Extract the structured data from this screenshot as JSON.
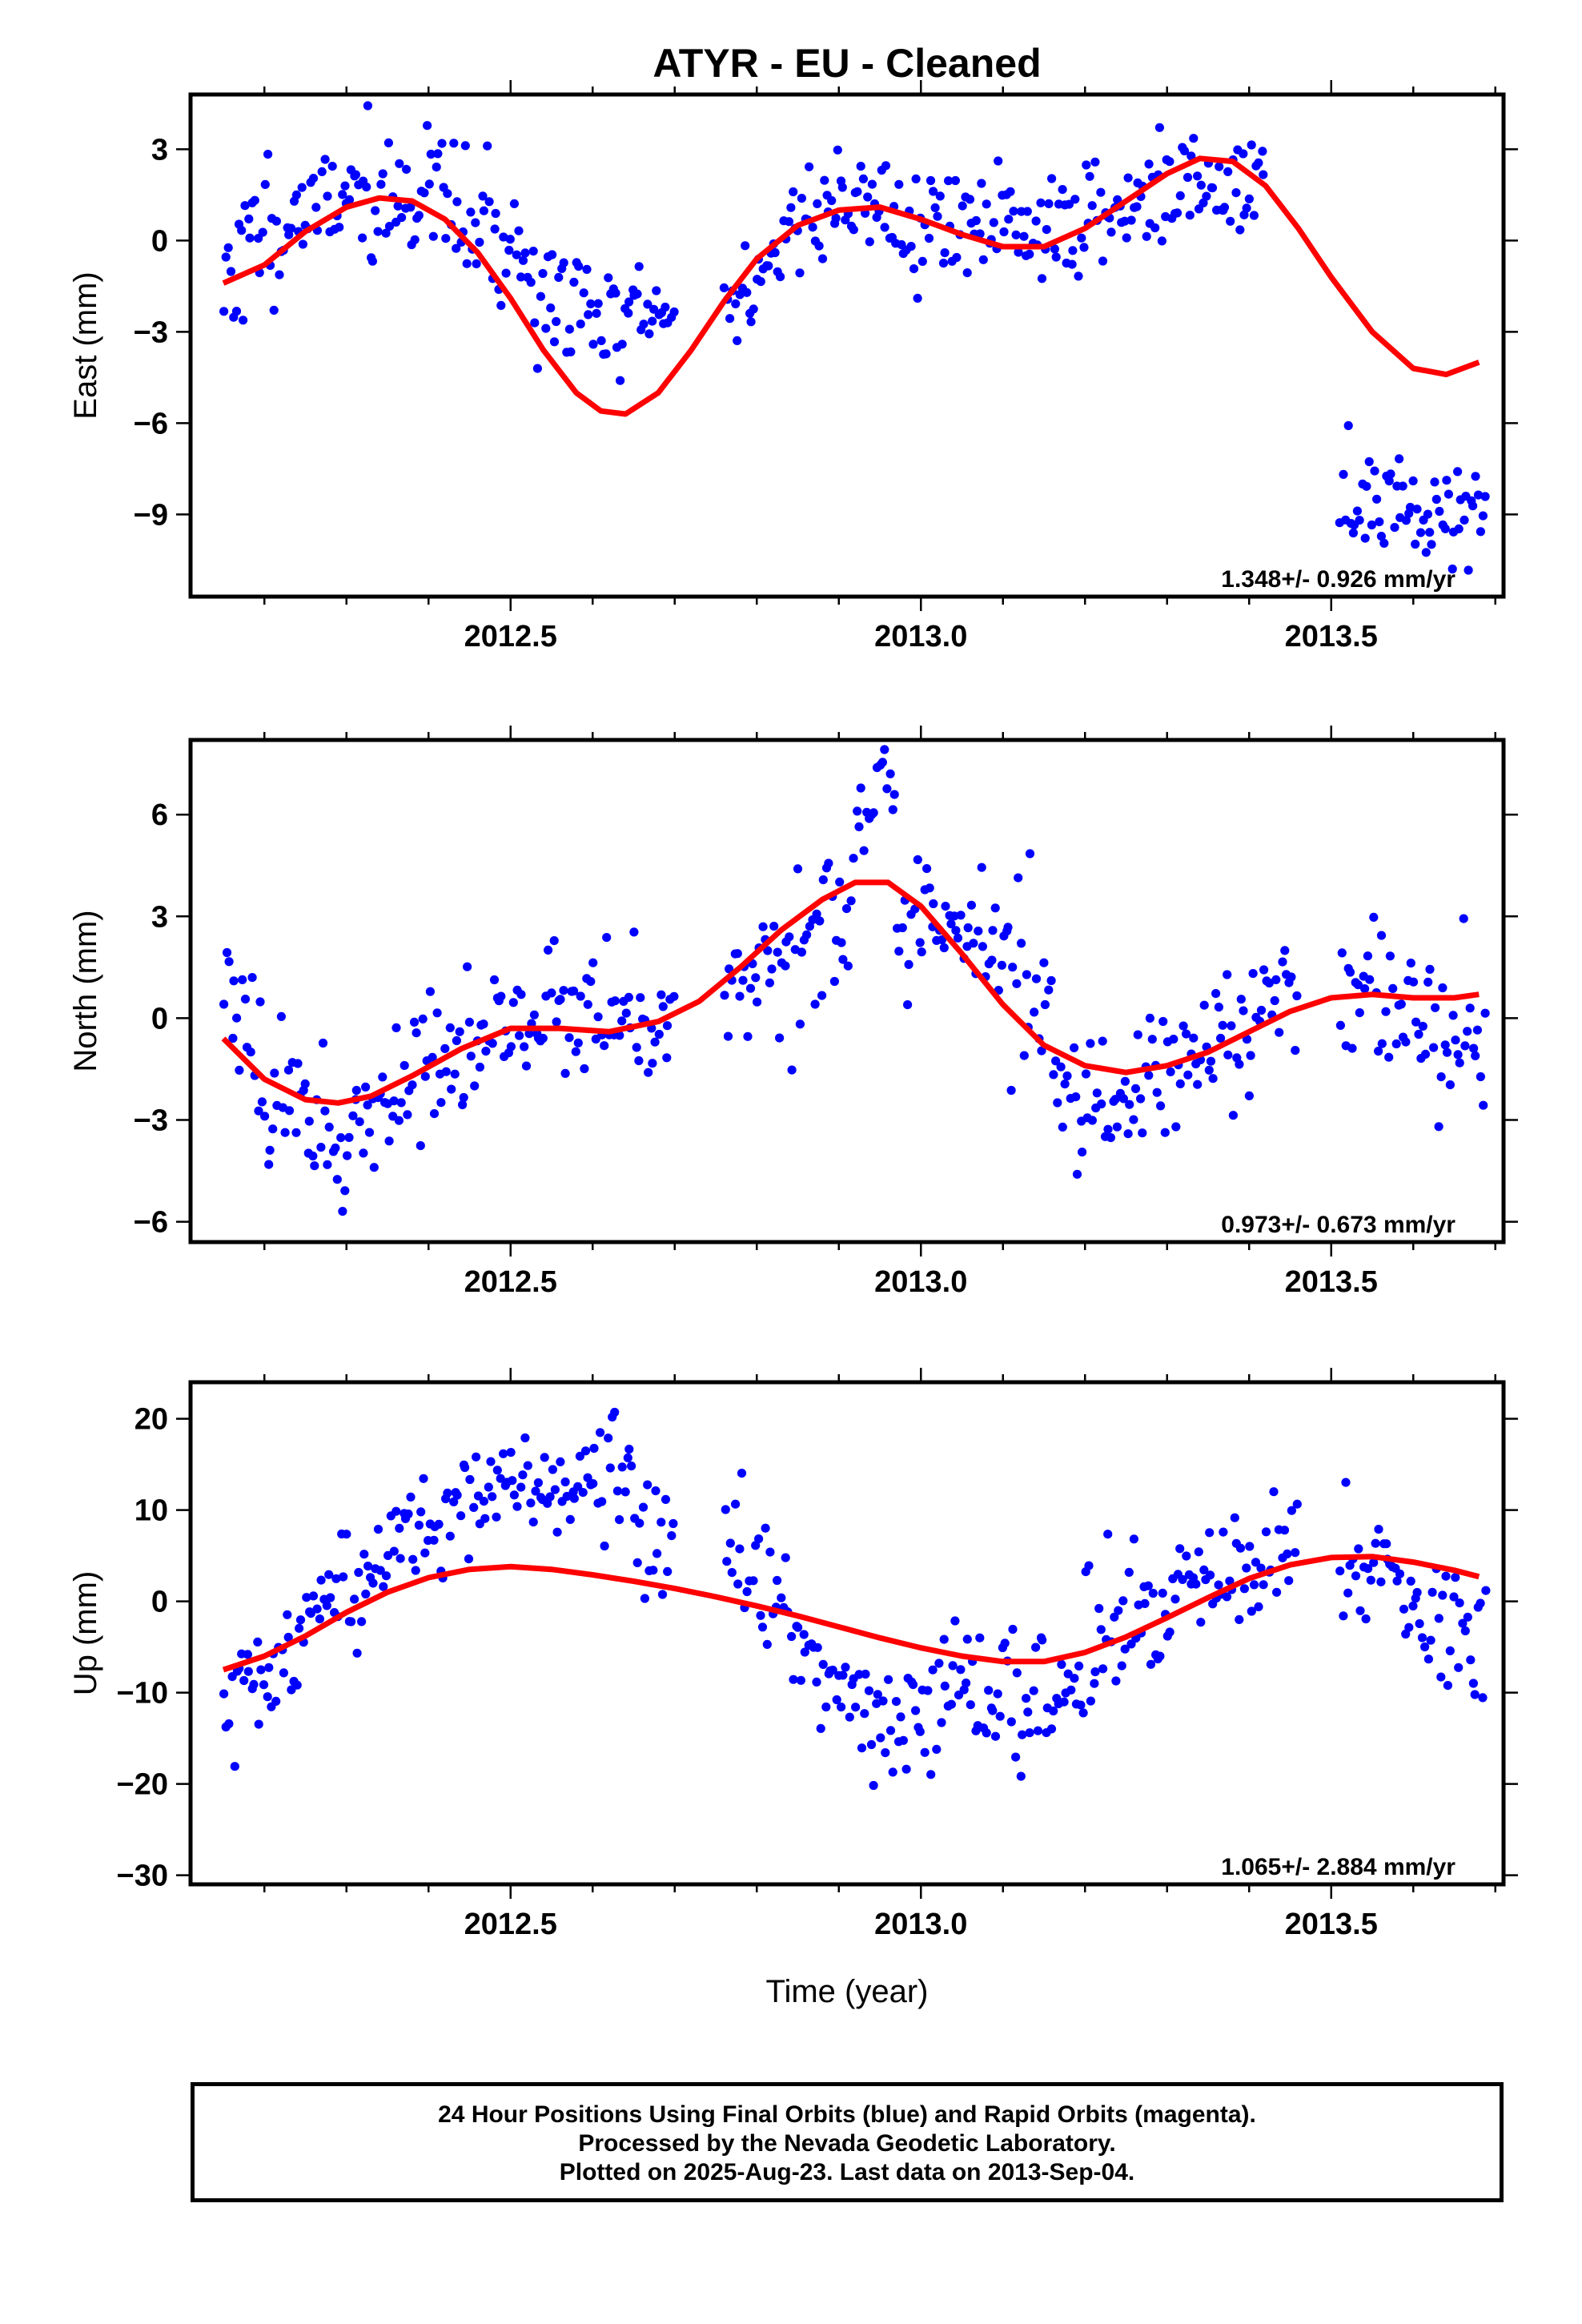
{
  "chart_data": [
    {
      "type": "scatter",
      "title": "ATYR  - EU - Cleaned",
      "ylabel": "East (mm)",
      "xlabel": "",
      "xlim": [
        2012.11,
        2013.71
      ],
      "ylim": [
        -11.7,
        4.8
      ],
      "xticks": [
        2012.5,
        2013.0,
        2013.5
      ],
      "xtick_labels": [
        "2012.5",
        "2013.0",
        "2013.5"
      ],
      "yticks": [
        3,
        0,
        -3,
        -6,
        -9
      ],
      "ytick_labels": [
        "3",
        "0",
        "−3",
        "−6",
        "−9"
      ],
      "rate_text": "1.348+/- 0.926 mm/yr",
      "series": [
        {
          "color": "#0000ff",
          "style": "points",
          "segments": [
            [
              2012.15,
              2012.22,
              -1.2,
              1.0,
              1.6
            ],
            [
              2012.22,
              2012.32,
              0.4,
              2.2,
              1.4
            ],
            [
              2012.32,
              2012.42,
              1.2,
              1.6,
              1.4
            ],
            [
              2012.42,
              2012.52,
              0.8,
              -0.4,
              1.8
            ],
            [
              2012.52,
              2012.6,
              -1.6,
              -2.4,
              1.3
            ],
            [
              2012.6,
              2012.7,
              -2.6,
              -2.4,
              1.2
            ],
            [
              2012.76,
              2012.84,
              -2.4,
              0.0,
              1.3
            ],
            [
              2012.84,
              2012.96,
              0.8,
              1.6,
              1.2
            ],
            [
              2012.96,
              2013.1,
              0.2,
              0.8,
              1.3
            ],
            [
              2013.1,
              2013.22,
              0.0,
              1.0,
              1.3
            ],
            [
              2013.22,
              2013.32,
              1.0,
              1.8,
              1.3
            ],
            [
              2013.32,
              2013.42,
              1.4,
              1.8,
              1.2
            ],
            [
              2013.51,
              2013.69,
              -8.6,
              -8.8,
              1.2
            ]
          ],
          "npts": 470,
          "seed": 11
        }
      ],
      "fit": {
        "color": "#ff0000",
        "x": [
          2012.15,
          2012.2,
          2012.25,
          2012.3,
          2012.34,
          2012.38,
          2012.42,
          2012.46,
          2012.5,
          2012.54,
          2012.58,
          2012.61,
          2012.64,
          2012.68,
          2012.72,
          2012.76,
          2012.8,
          2012.85,
          2012.9,
          2012.95,
          2013.0,
          2013.05,
          2013.1,
          2013.15,
          2013.2,
          2013.25,
          2013.3,
          2013.34,
          2013.38,
          2013.42,
          2013.46,
          2013.5,
          2013.55,
          2013.6,
          2013.64,
          2013.68
        ],
        "y": [
          -1.4,
          -0.8,
          0.3,
          1.1,
          1.4,
          1.3,
          0.7,
          -0.4,
          -1.9,
          -3.6,
          -5.0,
          -5.6,
          -5.7,
          -5.0,
          -3.6,
          -2.0,
          -0.6,
          0.5,
          1.0,
          1.1,
          0.7,
          0.2,
          -0.2,
          -0.2,
          0.4,
          1.3,
          2.2,
          2.7,
          2.6,
          1.8,
          0.4,
          -1.2,
          -3.0,
          -4.2,
          -4.4,
          -4.0
        ]
      }
    },
    {
      "type": "scatter",
      "title": "",
      "ylabel": "North (mm)",
      "xlabel": "",
      "xlim": [
        2012.11,
        2013.71
      ],
      "ylim": [
        -6.6,
        8.2
      ],
      "xticks": [
        2012.5,
        2013.0,
        2013.5
      ],
      "xtick_labels": [
        "2012.5",
        "2013.0",
        "2013.5"
      ],
      "yticks": [
        6,
        3,
        0,
        -3,
        -6
      ],
      "ytick_labels": [
        "6",
        "3",
        "0",
        "−3",
        "−6"
      ],
      "rate_text": "0.973+/- 0.673 mm/yr",
      "series": [
        {
          "color": "#0000ff",
          "style": "points",
          "segments": [
            [
              2012.15,
              2012.2,
              1.8,
              -0.8,
              1.4
            ],
            [
              2012.2,
              2012.3,
              -2.0,
              -3.6,
              1.4
            ],
            [
              2012.3,
              2012.4,
              -3.0,
              -1.6,
              1.2
            ],
            [
              2012.4,
              2012.5,
              -1.6,
              -0.2,
              1.3
            ],
            [
              2012.5,
              2012.6,
              0.0,
              0.4,
              1.2
            ],
            [
              2012.6,
              2012.7,
              0.2,
              0.2,
              1.2
            ],
            [
              2012.76,
              2012.86,
              0.8,
              2.6,
              1.4
            ],
            [
              2012.86,
              2012.92,
              2.4,
              3.2,
              1.6
            ],
            [
              2012.92,
              2012.97,
              5.0,
              7.0,
              1.2
            ],
            [
              2012.97,
              2013.06,
              2.0,
              2.6,
              1.4
            ],
            [
              2013.06,
              2013.16,
              2.6,
              0.4,
              1.8
            ],
            [
              2013.16,
              2013.26,
              -2.0,
              -2.4,
              1.2
            ],
            [
              2013.26,
              2013.38,
              -1.8,
              0.0,
              1.3
            ],
            [
              2013.38,
              2013.46,
              0.0,
              0.2,
              1.3
            ],
            [
              2013.51,
              2013.69,
              1.2,
              -1.0,
              1.4
            ]
          ],
          "npts": 470,
          "seed": 23
        }
      ],
      "fit": {
        "color": "#ff0000",
        "x": [
          2012.15,
          2012.2,
          2012.25,
          2012.29,
          2012.33,
          2012.38,
          2012.44,
          2012.5,
          2012.56,
          2012.62,
          2012.68,
          2012.73,
          2012.78,
          2012.83,
          2012.88,
          2012.92,
          2012.96,
          2013.0,
          2013.05,
          2013.1,
          2013.15,
          2013.2,
          2013.25,
          2013.3,
          2013.35,
          2013.4,
          2013.45,
          2013.5,
          2013.55,
          2013.6,
          2013.65,
          2013.68
        ],
        "y": [
          -0.6,
          -1.8,
          -2.4,
          -2.5,
          -2.3,
          -1.7,
          -0.9,
          -0.3,
          -0.3,
          -0.4,
          -0.1,
          0.5,
          1.5,
          2.6,
          3.5,
          4.0,
          4.0,
          3.3,
          1.9,
          0.4,
          -0.8,
          -1.4,
          -1.6,
          -1.4,
          -1.0,
          -0.4,
          0.2,
          0.6,
          0.7,
          0.6,
          0.6,
          0.7
        ]
      }
    },
    {
      "type": "scatter",
      "title": "",
      "ylabel": "Up (mm)",
      "xlabel": "Time (year)",
      "xlim": [
        2012.11,
        2013.71
      ],
      "ylim": [
        -31,
        24
      ],
      "xticks": [
        2012.5,
        2013.0,
        2013.5
      ],
      "xtick_labels": [
        "2012.5",
        "2013.0",
        "2013.5"
      ],
      "yticks": [
        20,
        10,
        0,
        -10,
        -20,
        -30
      ],
      "ytick_labels": [
        "20",
        "10",
        "0",
        "−10",
        "−20",
        "−30"
      ],
      "rate_text": "1.065+/- 2.884 mm/yr",
      "series": [
        {
          "color": "#0000ff",
          "style": "points",
          "segments": [
            [
              2012.15,
              2012.25,
              -12.0,
              -6.0,
              4.5
            ],
            [
              2012.25,
              2012.35,
              -3.0,
              4.0,
              4.0
            ],
            [
              2012.35,
              2012.45,
              6.0,
              12.0,
              4.0
            ],
            [
              2012.45,
              2012.55,
              12.0,
              12.0,
              4.5
            ],
            [
              2012.55,
              2012.65,
              12.0,
              14.0,
              4.5
            ],
            [
              2012.65,
              2012.7,
              8.0,
              6.0,
              4.0
            ],
            [
              2012.76,
              2012.84,
              6.0,
              -2.0,
              4.5
            ],
            [
              2012.84,
              2012.92,
              -4.0,
              -10.0,
              4.5
            ],
            [
              2012.92,
              2013.02,
              -14.0,
              -14.0,
              5.0
            ],
            [
              2013.02,
              2013.12,
              -8.0,
              -10.0,
              5.0
            ],
            [
              2013.12,
              2013.2,
              -14.0,
              -8.0,
              5.0
            ],
            [
              2013.2,
              2013.3,
              -4.0,
              0.0,
              4.5
            ],
            [
              2013.3,
              2013.38,
              0.0,
              3.0,
              4.5
            ],
            [
              2013.38,
              2013.46,
              4.0,
              6.0,
              4.0
            ],
            [
              2013.51,
              2013.69,
              4.0,
              -4.0,
              4.5
            ]
          ],
          "npts": 470,
          "seed": 37
        }
      ],
      "fit": {
        "color": "#ff0000",
        "x": [
          2012.15,
          2012.2,
          2012.25,
          2012.3,
          2012.35,
          2012.4,
          2012.45,
          2012.5,
          2012.55,
          2012.6,
          2012.65,
          2012.7,
          2012.75,
          2012.8,
          2012.85,
          2012.9,
          2012.95,
          2013.0,
          2013.05,
          2013.1,
          2013.15,
          2013.2,
          2013.25,
          2013.3,
          2013.35,
          2013.4,
          2013.45,
          2013.5,
          2013.55,
          2013.6,
          2013.65,
          2013.68
        ],
        "y": [
          -7.5,
          -6.0,
          -3.8,
          -1.2,
          1.0,
          2.6,
          3.5,
          3.8,
          3.5,
          2.9,
          2.2,
          1.4,
          0.5,
          -0.5,
          -1.6,
          -2.8,
          -4.0,
          -5.1,
          -6.0,
          -6.6,
          -6.6,
          -5.6,
          -3.9,
          -1.8,
          0.4,
          2.5,
          4.0,
          4.8,
          4.9,
          4.3,
          3.4,
          2.7
        ]
      }
    }
  ],
  "footer": {
    "line1": "24 Hour Positions Using Final Orbits (blue) and Rapid Orbits (magenta).",
    "line2": "Processed by the Nevada Geodetic Laboratory.",
    "line3": "Plotted on 2025-Aug-23. Last data on 2013-Sep-04."
  }
}
